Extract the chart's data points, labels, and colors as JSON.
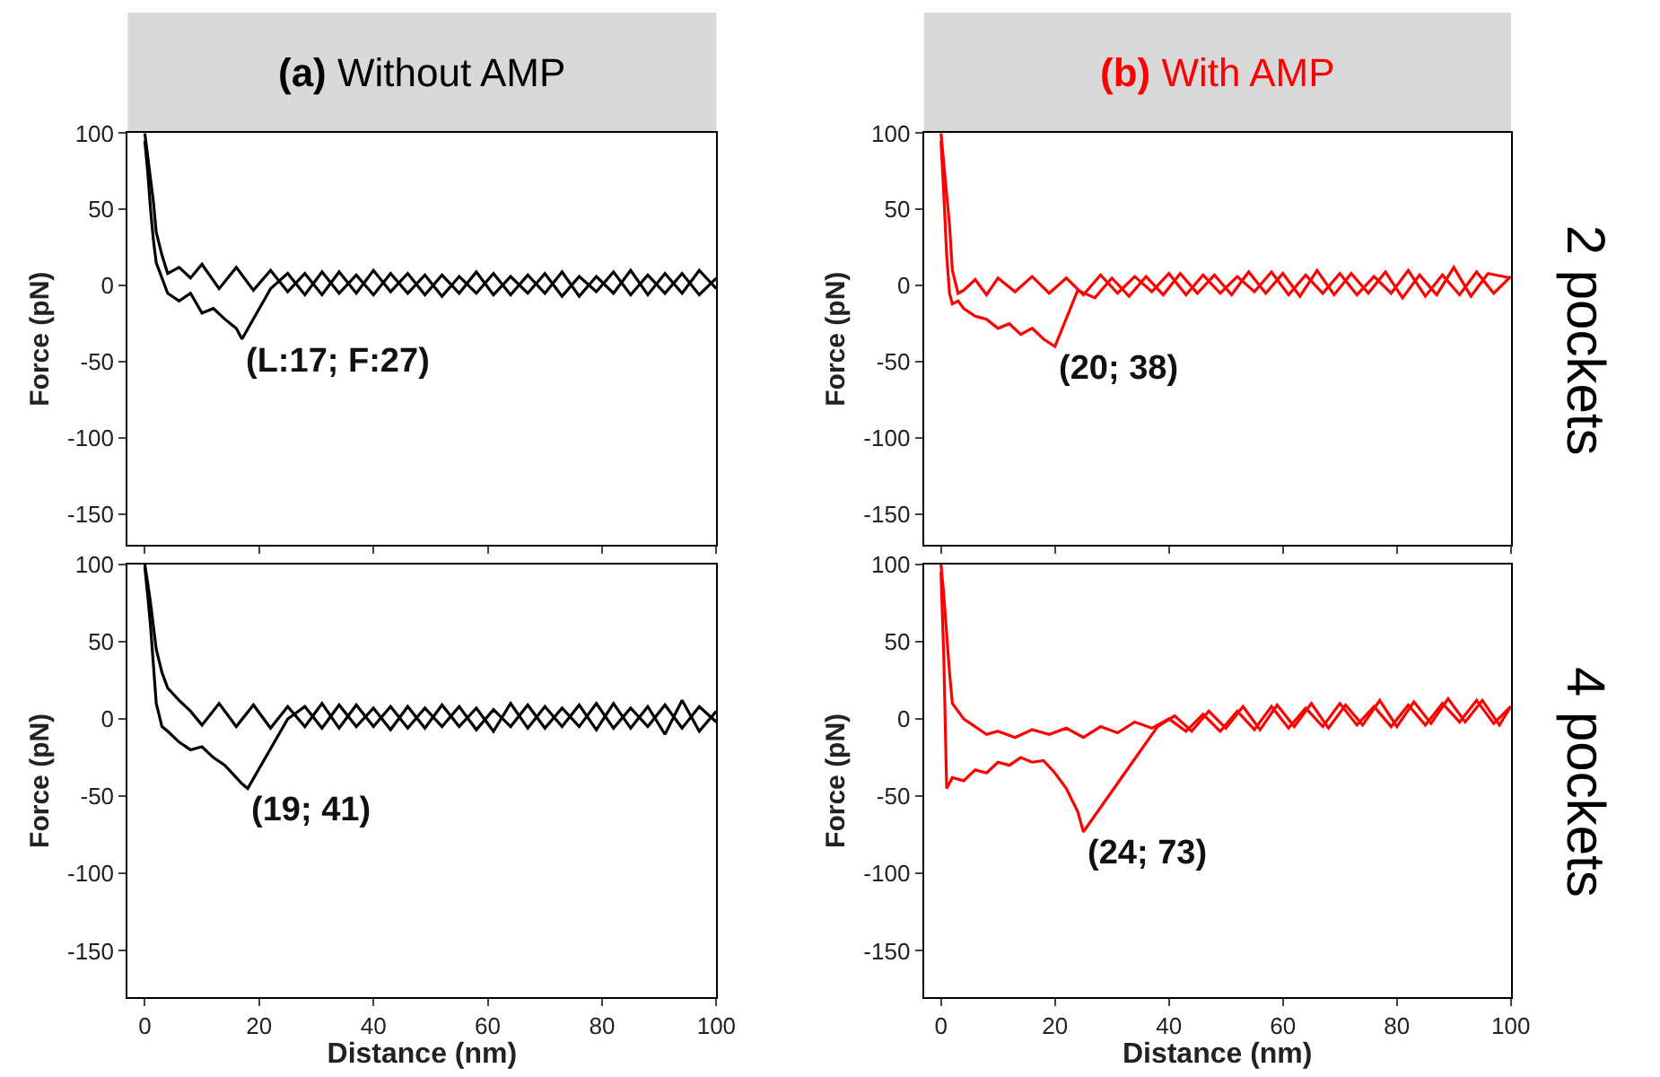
{
  "chart_data": [
    {
      "type": "line",
      "title": "(a) Without AMP",
      "ylabel": "Force (pN)",
      "xlim": [
        -3,
        100
      ],
      "ylim": [
        -170,
        100
      ],
      "xticks": [
        0,
        20,
        40,
        60,
        80,
        100
      ],
      "yticks": [
        -150,
        -100,
        -50,
        0,
        50,
        100
      ],
      "tick_labels": "y",
      "grid": false,
      "legend": false,
      "annotations": [
        {
          "text": "(L:17; F:27)",
          "x": 17,
          "y": -35
        }
      ],
      "series": [
        {
          "color": "#000000",
          "x": [
            100,
            97,
            94,
            91,
            88,
            85,
            82,
            79,
            76,
            73,
            70,
            67,
            64,
            61,
            58,
            55,
            52,
            49,
            46,
            43,
            40,
            37,
            34,
            31,
            28,
            25,
            22,
            19,
            16,
            13,
            10,
            8,
            6,
            4,
            3,
            2,
            1.5,
            1,
            0.5,
            0
          ],
          "values": [
            5,
            -6,
            8,
            -5,
            7,
            -6,
            9,
            -4,
            6,
            -7,
            8,
            -5,
            6,
            -6,
            9,
            -5,
            7,
            -6,
            8,
            -4,
            10,
            -5,
            9,
            -6,
            8,
            -4,
            10,
            -3,
            12,
            -2,
            14,
            5,
            12,
            8,
            20,
            35,
            55,
            70,
            85,
            100
          ]
        },
        {
          "color": "#000000",
          "x": [
            0,
            0.5,
            1,
            1.5,
            2,
            3,
            4,
            6,
            8,
            10,
            12,
            14,
            15,
            16,
            17,
            22,
            25,
            28,
            31,
            34,
            37,
            40,
            43,
            46,
            49,
            52,
            55,
            58,
            61,
            64,
            67,
            70,
            73,
            76,
            79,
            82,
            85,
            88,
            91,
            94,
            97,
            100
          ],
          "values": [
            95,
            75,
            50,
            30,
            15,
            5,
            -5,
            -10,
            -5,
            -18,
            -15,
            -22,
            -25,
            -28,
            -35,
            -2,
            8,
            -6,
            9,
            -5,
            7,
            -6,
            8,
            -5,
            7,
            -7,
            6,
            -5,
            8,
            -6,
            7,
            -5,
            9,
            -7,
            6,
            -5,
            10,
            -6,
            8,
            -5,
            10,
            -2
          ]
        }
      ]
    },
    {
      "type": "line",
      "title": "(b) With AMP",
      "ylabel": "Force (pN)",
      "xlim": [
        -3,
        100
      ],
      "ylim": [
        -170,
        100
      ],
      "xticks": [
        0,
        20,
        40,
        60,
        80,
        100
      ],
      "yticks": [
        -150,
        -100,
        -50,
        0,
        50,
        100
      ],
      "tick_labels": "y",
      "grid": false,
      "legend": false,
      "annotations": [
        {
          "text": "(20; 38)",
          "x": 20,
          "y": -40
        },
        "2 pockets"
      ],
      "series": [
        {
          "color": "#ff0000",
          "x": [
            100,
            97,
            94,
            91,
            88,
            85,
            82,
            79,
            76,
            73,
            70,
            67,
            64,
            61,
            58,
            55,
            52,
            49,
            46,
            43,
            40,
            37,
            34,
            31,
            28,
            25,
            22,
            19,
            16,
            13,
            10,
            8,
            6,
            4,
            3,
            2,
            1.5,
            1,
            0.5,
            0
          ],
          "values": [
            6,
            -5,
            9,
            -6,
            7,
            -7,
            10,
            -5,
            6,
            -6,
            8,
            -5,
            7,
            -6,
            9,
            -4,
            6,
            -5,
            7,
            -6,
            8,
            -4,
            6,
            -5,
            7,
            -6,
            5,
            -5,
            6,
            -4,
            5,
            -6,
            4,
            -3,
            -5,
            10,
            40,
            60,
            80,
            100
          ]
        },
        {
          "color": "#ff0000",
          "x": [
            0,
            0.5,
            1,
            1.5,
            2,
            3,
            4,
            6,
            8,
            10,
            12,
            14,
            16,
            18,
            20,
            24,
            27,
            30,
            33,
            36,
            39,
            42,
            45,
            48,
            51,
            54,
            57,
            60,
            63,
            66,
            69,
            72,
            75,
            78,
            81,
            84,
            87,
            90,
            93,
            96,
            100
          ],
          "values": [
            95,
            60,
            20,
            -5,
            -12,
            -10,
            -15,
            -20,
            -22,
            -28,
            -25,
            -32,
            -28,
            -35,
            -40,
            -3,
            -8,
            5,
            -7,
            6,
            -6,
            8,
            -5,
            7,
            -6,
            9,
            -5,
            8,
            -7,
            10,
            -6,
            8,
            -5,
            9,
            -8,
            7,
            -6,
            12,
            -7,
            8,
            5
          ]
        }
      ]
    },
    {
      "type": "line",
      "xlabel": "Distance (nm)",
      "ylabel": "Force (pN)",
      "xlim": [
        -3,
        100
      ],
      "ylim": [
        -180,
        100
      ],
      "xticks": [
        0,
        20,
        40,
        60,
        80,
        100
      ],
      "yticks": [
        -150,
        -100,
        -50,
        0,
        50,
        100
      ],
      "grid": false,
      "legend": false,
      "annotations": [
        {
          "text": "(19; 41)",
          "x": 18,
          "y": -45
        }
      ],
      "series": [
        {
          "color": "#000000",
          "x": [
            100,
            97,
            94,
            91,
            88,
            85,
            82,
            79,
            76,
            73,
            70,
            67,
            64,
            61,
            58,
            55,
            52,
            49,
            46,
            43,
            40,
            37,
            34,
            31,
            28,
            25,
            22,
            19,
            16,
            13,
            10,
            8,
            6,
            4,
            3,
            2,
            1.5,
            1,
            0.5,
            0
          ],
          "values": [
            -2,
            8,
            -6,
            9,
            -5,
            7,
            -6,
            10,
            -5,
            7,
            -6,
            9,
            -5,
            6,
            -7,
            8,
            -5,
            7,
            -6,
            8,
            -5,
            9,
            -6,
            10,
            -5,
            8,
            -6,
            9,
            -5,
            10,
            -4,
            5,
            12,
            20,
            30,
            45,
            60,
            75,
            88,
            100
          ]
        },
        {
          "color": "#000000",
          "x": [
            0,
            0.5,
            1,
            1.5,
            2,
            3,
            4,
            6,
            8,
            10,
            12,
            14,
            16,
            17,
            18,
            25,
            28,
            31,
            34,
            37,
            40,
            43,
            46,
            49,
            52,
            55,
            58,
            61,
            64,
            67,
            70,
            73,
            76,
            79,
            82,
            85,
            88,
            91,
            94,
            97,
            100
          ],
          "values": [
            98,
            80,
            60,
            35,
            10,
            -5,
            -8,
            -15,
            -20,
            -18,
            -25,
            -30,
            -38,
            -42,
            -45,
            0,
            8,
            -6,
            9,
            -5,
            7,
            -7,
            8,
            -6,
            9,
            -5,
            7,
            -8,
            10,
            -6,
            8,
            -5,
            9,
            -7,
            10,
            -6,
            8,
            -10,
            12,
            -8,
            5
          ]
        }
      ]
    },
    {
      "type": "line",
      "xlabel": "Distance (nm)",
      "ylabel": "Force (pN)",
      "xlim": [
        -3,
        100
      ],
      "ylim": [
        -180,
        100
      ],
      "xticks": [
        0,
        20,
        40,
        60,
        80,
        100
      ],
      "yticks": [
        -150,
        -100,
        -50,
        0,
        50,
        100
      ],
      "grid": false,
      "legend": false,
      "annotations": [
        {
          "text": "(24; 73)",
          "x": 25,
          "y": -73
        },
        "4 pockets"
      ],
      "series": [
        {
          "color": "#ff0000",
          "x": [
            100,
            97,
            94,
            91,
            88,
            85,
            82,
            79,
            76,
            73,
            70,
            67,
            64,
            61,
            58,
            55,
            52,
            49,
            46,
            43,
            40,
            37,
            34,
            31,
            28,
            25,
            22,
            19,
            16,
            13,
            10,
            8,
            6,
            4,
            3,
            2,
            1.5,
            1,
            0.5,
            0
          ],
          "values": [
            8,
            -3,
            12,
            -2,
            10,
            -4,
            9,
            -5,
            8,
            -4,
            10,
            -5,
            7,
            -6,
            8,
            -7,
            5,
            -8,
            3,
            -8,
            0,
            -6,
            -2,
            -9,
            -5,
            -12,
            -6,
            -10,
            -7,
            -12,
            -8,
            -10,
            -5,
            0,
            5,
            10,
            30,
            55,
            80,
            100
          ]
        },
        {
          "color": "#ff0000",
          "x": [
            0,
            0.5,
            1,
            2,
            4,
            6,
            8,
            10,
            12,
            14,
            16,
            18,
            20,
            22,
            24,
            25,
            38,
            41,
            44,
            47,
            50,
            53,
            56,
            59,
            62,
            65,
            68,
            71,
            74,
            77,
            80,
            83,
            86,
            89,
            92,
            95,
            98,
            100
          ],
          "values": [
            95,
            40,
            -45,
            -38,
            -40,
            -33,
            -35,
            -28,
            -30,
            -25,
            -28,
            -27,
            -35,
            -45,
            -60,
            -73,
            -5,
            2,
            -8,
            5,
            -6,
            8,
            -7,
            9,
            -5,
            10,
            -6,
            9,
            -4,
            12,
            -5,
            11,
            -3,
            13,
            -2,
            12,
            -4,
            8
          ]
        }
      ]
    }
  ]
}
